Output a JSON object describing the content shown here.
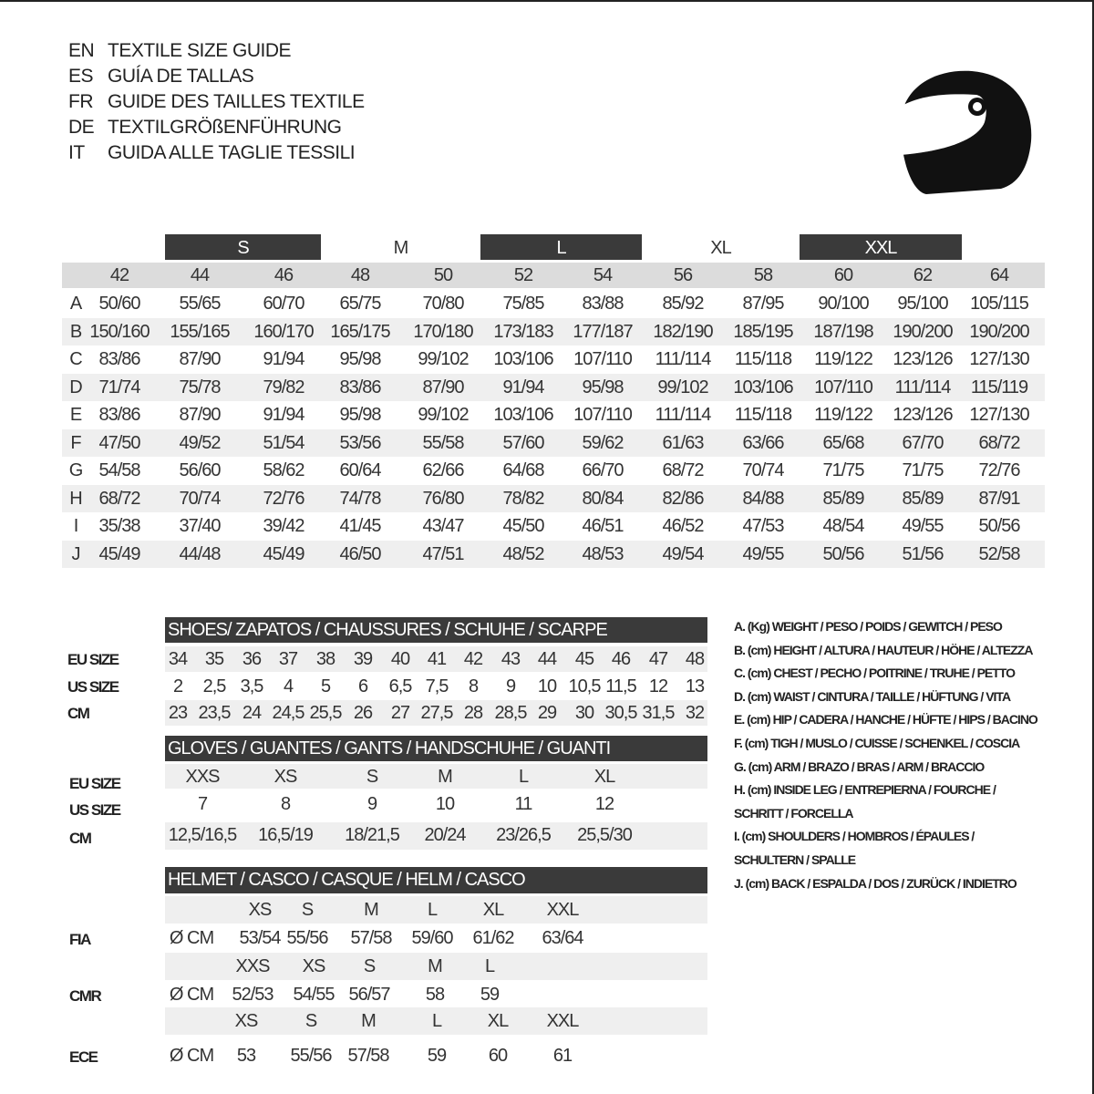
{
  "titles": [
    {
      "code": "EN",
      "text": "TEXTILE SIZE GUIDE"
    },
    {
      "code": "ES",
      "text": "GUÍA DE TALLAS"
    },
    {
      "code": "FR",
      "text": "GUIDE DES TAILLES TEXTILE"
    },
    {
      "code": "DE",
      "text": "TEXTILGRÖßENFÜHRUNG"
    },
    {
      "code": "IT",
      "text": "GUIDA ALLE TAGLIE TESSILI"
    }
  ],
  "icon": "helmet-icon",
  "textile": {
    "size_bands": [
      {
        "label": "S",
        "dark": true
      },
      {
        "label": "M",
        "dark": false
      },
      {
        "label": "L",
        "dark": true
      },
      {
        "label": "XL",
        "dark": false
      },
      {
        "label": "XXL",
        "dark": true
      }
    ],
    "columns": [
      "42",
      "44",
      "46",
      "48",
      "50",
      "52",
      "54",
      "56",
      "58",
      "60",
      "62",
      "64"
    ],
    "rows": [
      {
        "key": "A",
        "values": [
          "50/60",
          "55/65",
          "60/70",
          "65/75",
          "70/80",
          "75/85",
          "83/88",
          "85/92",
          "87/95",
          "90/100",
          "95/100",
          "105/115"
        ]
      },
      {
        "key": "B",
        "values": [
          "150/160",
          "155/165",
          "160/170",
          "165/175",
          "170/180",
          "173/183",
          "177/187",
          "182/190",
          "185/195",
          "187/198",
          "190/200",
          "190/200"
        ]
      },
      {
        "key": "C",
        "values": [
          "83/86",
          "87/90",
          "91/94",
          "95/98",
          "99/102",
          "103/106",
          "107/110",
          "111/114",
          "115/118",
          "119/122",
          "123/126",
          "127/130"
        ]
      },
      {
        "key": "D",
        "values": [
          "71/74",
          "75/78",
          "79/82",
          "83/86",
          "87/90",
          "91/94",
          "95/98",
          "99/102",
          "103/106",
          "107/110",
          "111/114",
          "115/119"
        ]
      },
      {
        "key": "E",
        "values": [
          "83/86",
          "87/90",
          "91/94",
          "95/98",
          "99/102",
          "103/106",
          "107/110",
          "111/114",
          "115/118",
          "119/122",
          "123/126",
          "127/130"
        ]
      },
      {
        "key": "F",
        "values": [
          "47/50",
          "49/52",
          "51/54",
          "53/56",
          "55/58",
          "57/60",
          "59/62",
          "61/63",
          "63/66",
          "65/68",
          "67/70",
          "68/72"
        ]
      },
      {
        "key": "G",
        "values": [
          "54/58",
          "56/60",
          "58/62",
          "60/64",
          "62/66",
          "64/68",
          "66/70",
          "68/72",
          "70/74",
          "71/75",
          "71/75",
          "72/76"
        ]
      },
      {
        "key": "H",
        "values": [
          "68/72",
          "70/74",
          "72/76",
          "74/78",
          "76/80",
          "78/82",
          "80/84",
          "82/86",
          "84/88",
          "85/89",
          "85/89",
          "87/91"
        ]
      },
      {
        "key": "I",
        "values": [
          "35/38",
          "37/40",
          "39/42",
          "41/45",
          "43/47",
          "45/50",
          "46/51",
          "46/52",
          "47/53",
          "48/54",
          "49/55",
          "50/56"
        ]
      },
      {
        "key": "J",
        "values": [
          "45/49",
          "44/48",
          "45/49",
          "46/50",
          "47/51",
          "48/52",
          "48/53",
          "49/54",
          "49/55",
          "50/56",
          "51/56",
          "52/58"
        ]
      }
    ]
  },
  "shoes": {
    "title": "SHOES/ ZAPATOS / CHAUSSURES / SCHUHE / SCARPE",
    "rows": [
      {
        "label": "EU SIZE",
        "values": [
          "34",
          "35",
          "36",
          "37",
          "38",
          "39",
          "40",
          "41",
          "42",
          "43",
          "44",
          "45",
          "46",
          "47",
          "48"
        ]
      },
      {
        "label": "US SIZE",
        "values": [
          "2",
          "2,5",
          "3,5",
          "4",
          "5",
          "6",
          "6,5",
          "7,5",
          "8",
          "9",
          "10",
          "10,5",
          "11,5",
          "12",
          "13"
        ]
      },
      {
        "label": "CM",
        "values": [
          "23",
          "23,5",
          "24",
          "24,5",
          "25,5",
          "26",
          "27",
          "27,5",
          "28",
          "28,5",
          "29",
          "30",
          "30,5",
          "31,5",
          "32"
        ]
      }
    ]
  },
  "gloves": {
    "title": "GLOVES / GUANTES / GANTS / HANDSCHUHE / GUANTI",
    "rows": [
      {
        "label": "EU SIZE",
        "values": [
          "XXS",
          "XS",
          "S",
          "M",
          "L",
          "XL"
        ]
      },
      {
        "label": "US SIZE",
        "values": [
          "7",
          "8",
          "9",
          "10",
          "11",
          "12"
        ]
      },
      {
        "label": "CM",
        "values": [
          "12,5/16,5",
          "16,5/19",
          "18/21,5",
          "20/24",
          "23/26,5",
          "25,5/30"
        ]
      }
    ]
  },
  "helmet": {
    "title": "HELMET / CASCO / CASQUE / HELM / CASCO",
    "unit": "Ø CM",
    "standards": [
      {
        "label": "FIA",
        "sizes": [
          "XS",
          "S",
          "M",
          "L",
          "XL",
          "XXL"
        ],
        "values": [
          "53/54",
          "55/56",
          "57/58",
          "59/60",
          "61/62",
          "63/64"
        ]
      },
      {
        "label": "CMR",
        "sizes": [
          "XXS",
          "XS",
          "S",
          "M",
          "L"
        ],
        "values": [
          "52/53",
          "54/55",
          "56/57",
          "58",
          "59"
        ]
      },
      {
        "label": "ECE",
        "sizes": [
          "XS",
          "S",
          "M",
          "L",
          "XL",
          "XXL"
        ],
        "values": [
          "53",
          "55/56",
          "57/58",
          "59",
          "60",
          "61"
        ]
      }
    ]
  },
  "legend": [
    "A. (Kg) WEIGHT / PESO / POIDS / GEWITCH / PESO",
    "B. (cm) HEIGHT / ALTURA / HAUTEUR / HÖHE / ALTEZZA",
    "C. (cm) CHEST / PECHO / POITRINE / TRUHE / PETTO",
    "D. (cm) WAIST / CINTURA / TAILLE / HÜFTUNG / VITA",
    "E. (cm) HIP / CADERA / HANCHE / HÜFTE / HIPS /  BACINO",
    "F.  (cm) TIGH / MUSLO / CUISSE / SCHENKEL / COSCIA",
    "G. (cm) ARM  / BRAZO / BRAS / ARM / BRACCIO",
    "H. (cm) INSIDE LEG / ENTREPIERNA / FOURCHE /",
    "SCHRITT / FORCELLA",
    "I.  (cm) SHOULDERS / HOMBROS / ÉPAULES /",
    "SCHULTERN / SPALLE",
    "J. (cm) BACK / ESPALDA / DOS / ZURÜCK / INDIETRO"
  ],
  "colors": {
    "dark_band": "#3a3a3a",
    "gray_band": "#dcdcdc",
    "light_band": "#efefef",
    "text": "#333333"
  }
}
